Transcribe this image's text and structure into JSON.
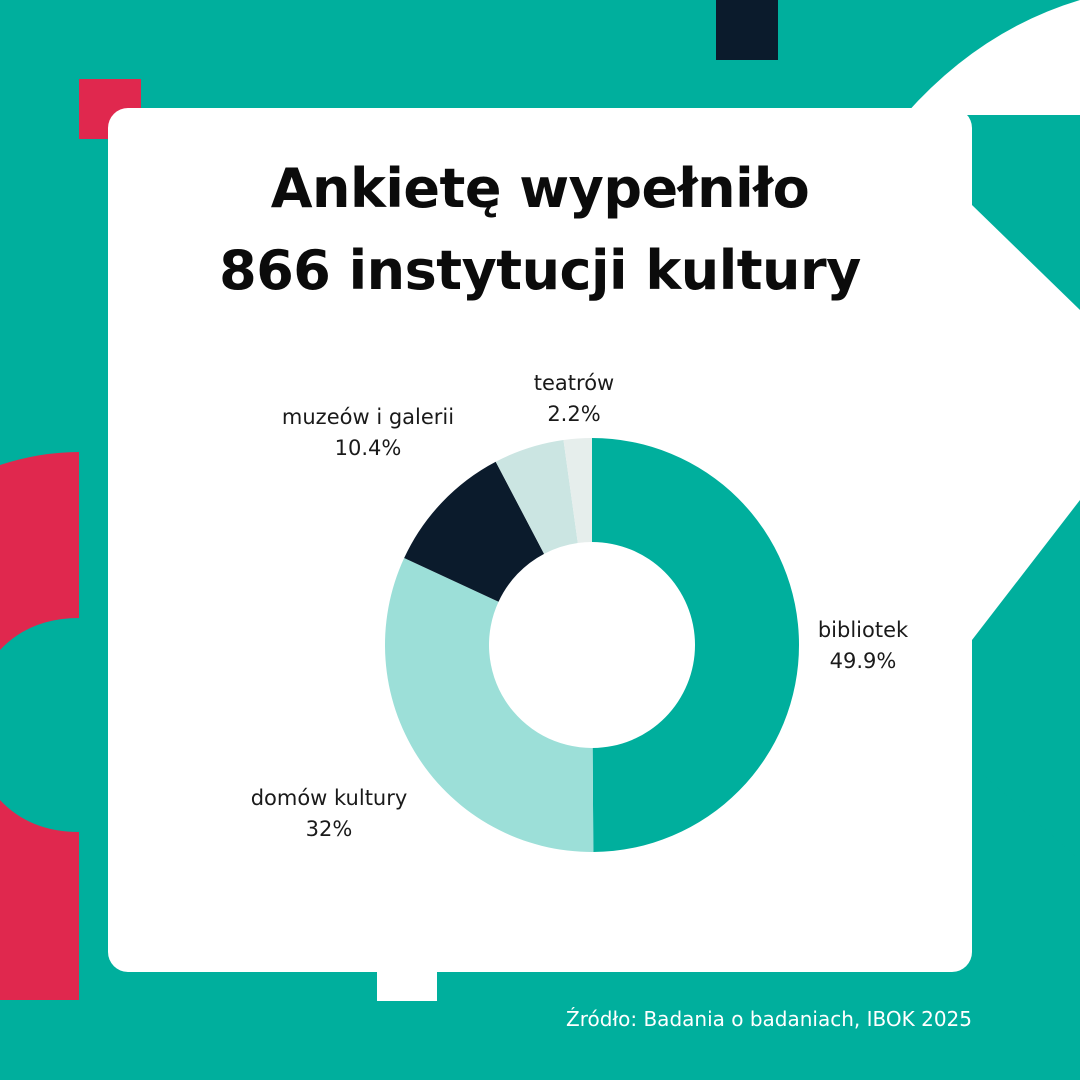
{
  "title": {
    "line1": "Ankietę wypełniło",
    "line2": "866 instytucji kultury"
  },
  "source": "Źródło: Badania o badaniach, IBOK 2025",
  "colors": {
    "background": "#00AF9D",
    "accent_red": "#E0284E",
    "dark": "#0B1B2C",
    "card": "#FFFFFF"
  },
  "chart_data": {
    "type": "pie",
    "donut": true,
    "segments": [
      {
        "name": "bibliotek",
        "value": 49.9,
        "label": "49.9%",
        "color": "#00AF9D"
      },
      {
        "name": "domów kultury",
        "value": 32,
        "label": "32%",
        "color": "#9CDFD8"
      },
      {
        "name": "muzeów i galerii",
        "value": 10.4,
        "label": "10.4%",
        "color": "#0B1B2C"
      },
      {
        "name": "teatrów",
        "value": 5.5,
        "label": "",
        "color": "#CBE5E2"
      },
      {
        "name": "teatrów",
        "value": 2.2,
        "label": "2.2%",
        "color": "#E6EEEC"
      }
    ]
  }
}
